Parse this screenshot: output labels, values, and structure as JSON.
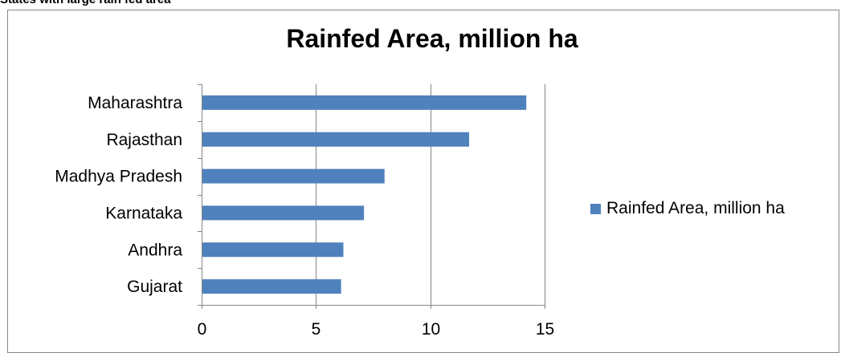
{
  "heading": "States with large rain fed area",
  "chart_data": {
    "type": "bar",
    "orientation": "horizontal",
    "title": "Rainfed Area, million ha",
    "categories": [
      "Maharashtra",
      "Rajasthan",
      "Madhya Pradesh",
      "Karnataka",
      "Andhra",
      "Gujarat"
    ],
    "series": [
      {
        "name": "Rainfed Area, million ha",
        "values": [
          14.2,
          11.7,
          8.0,
          7.1,
          6.2,
          6.1
        ],
        "color": "#4f81bd"
      }
    ],
    "xlim": [
      0,
      15
    ],
    "xticks": [
      "0",
      "5",
      "10",
      "15"
    ],
    "xlabel": "",
    "ylabel": "",
    "grid": true,
    "legend_position": "right"
  }
}
